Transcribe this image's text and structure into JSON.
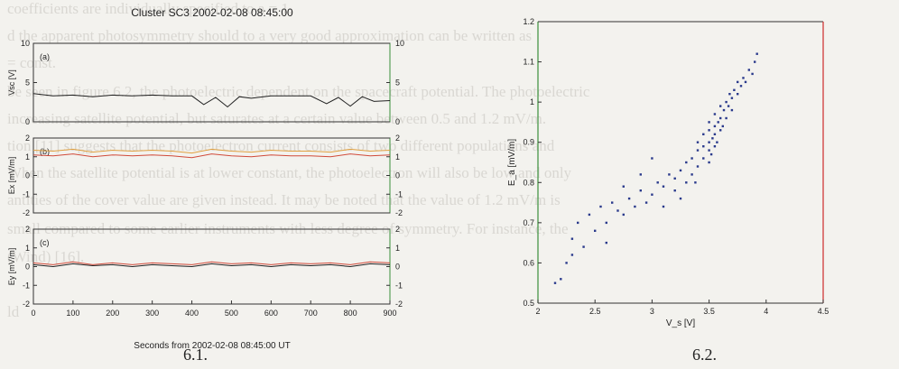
{
  "background_text": [
    "coefficients are individually specified to a = 1.",
    "d the apparent photosymmetry should to a very good approximation can be written as",
    "= const.",
    "be seen in figure 6.2, the photoelectric dependent on the spacecraft potential. The photoelectric",
    "increasing satellite potential, but saturates at a certain value between 0.5 and 1.2 mV/m.",
    "tion [11] suggests that the photoelectron current consists of two different populations and",
    "When the satellite potential is at lower constant, the photoelectron will also be low and only",
    "antities of the cover value are given instead. It may be noted that the value of 1.2 mV/m is",
    "small compared to some earlier instruments with less degree of symmetry. For instance, the",
    "(Wind) [16].",
    "ld"
  ],
  "figure_left": {
    "title": "Cluster SC3 2002-02-08 08:45:00",
    "xlabel": "Seconds from 2002-02-08 08:45:00 UT",
    "caption": "6.1.",
    "panels": [
      {
        "tag": "(a)",
        "ylabel": "Vsc [V]",
        "ylim": [
          0,
          10
        ],
        "yticks": [
          "10",
          "5",
          "0"
        ]
      },
      {
        "tag": "(b)",
        "ylabel": "Ex [mV/m]",
        "ylim": [
          -2,
          2
        ],
        "yticks": [
          "2",
          "1",
          "0",
          "-1",
          "-2"
        ]
      },
      {
        "tag": "(c)",
        "ylabel": "Ey [mV/m]",
        "ylim": [
          -2,
          2
        ],
        "yticks": [
          "2",
          "1",
          "0",
          "-1",
          "-2"
        ]
      }
    ],
    "xticks": [
      "0",
      "100",
      "200",
      "300",
      "400",
      "500",
      "600",
      "700",
      "800",
      "900"
    ],
    "colors": {
      "black_trace": "#222222",
      "red_trace": "#d04a3a",
      "orange_trace": "#e0a040",
      "axes": "#333333",
      "tick_marker": "#3a8f3a"
    }
  },
  "figure_right": {
    "caption": "6.2.",
    "xlabel": "V_s [V]",
    "ylabel": "E_a [mV/m]",
    "xticks": [
      "2",
      "2.5",
      "3",
      "3.5",
      "4",
      "4.5"
    ],
    "yticks": [
      "1.2",
      "1.1",
      "1",
      "0.9",
      "0.8",
      "0.7",
      "0.6",
      "0.5"
    ],
    "colors": {
      "points": "#2a3a8c",
      "axes": "#333333",
      "left_spine": "#3a8f3a",
      "right_spine": "#cc2a2a"
    }
  },
  "chart_data": [
    {
      "type": "line",
      "title": "Cluster SC3 2002-02-08 08:45:00",
      "xlabel": "Seconds from 2002-02-08 08:45:00 UT",
      "xlim": [
        0,
        900
      ],
      "panels": [
        {
          "ylabel": "Vsc [V]",
          "ylim": [
            0,
            10
          ],
          "series": [
            {
              "color": "#222222",
              "x": [
                0,
                50,
                100,
                150,
                200,
                250,
                300,
                350,
                400,
                430,
                460,
                490,
                520,
                550,
                600,
                650,
                700,
                740,
                770,
                800,
                830,
                860,
                900
              ],
              "y": [
                3.6,
                3.3,
                3.4,
                3.2,
                3.4,
                3.3,
                3.4,
                3.3,
                3.3,
                2.2,
                3.1,
                1.9,
                3.2,
                3.0,
                3.3,
                3.3,
                3.3,
                2.3,
                3.1,
                2.0,
                3.2,
                2.6,
                2.7
              ]
            }
          ]
        },
        {
          "ylabel": "Ex [mV/m]",
          "ylim": [
            -2,
            2
          ],
          "series": [
            {
              "color": "#e0a040",
              "x": [
                0,
                50,
                100,
                150,
                200,
                250,
                300,
                350,
                400,
                450,
                500,
                550,
                600,
                650,
                700,
                750,
                800,
                850,
                900
              ],
              "y": [
                1.35,
                1.3,
                1.4,
                1.25,
                1.35,
                1.3,
                1.35,
                1.3,
                1.2,
                1.4,
                1.3,
                1.25,
                1.35,
                1.3,
                1.3,
                1.25,
                1.4,
                1.3,
                1.35
              ]
            },
            {
              "color": "#d04a3a",
              "x": [
                0,
                50,
                100,
                150,
                200,
                250,
                300,
                350,
                400,
                450,
                500,
                550,
                600,
                650,
                700,
                750,
                800,
                850,
                900
              ],
              "y": [
                1.1,
                1.05,
                1.15,
                1.0,
                1.1,
                1.05,
                1.1,
                1.05,
                0.95,
                1.15,
                1.05,
                1.0,
                1.1,
                1.05,
                1.05,
                1.0,
                1.15,
                1.05,
                1.1
              ]
            }
          ]
        },
        {
          "ylabel": "Ey [mV/m]",
          "ylim": [
            -2,
            2
          ],
          "series": [
            {
              "color": "#222222",
              "x": [
                0,
                50,
                100,
                150,
                200,
                250,
                300,
                350,
                400,
                450,
                500,
                550,
                600,
                650,
                700,
                750,
                800,
                850,
                900
              ],
              "y": [
                0.1,
                0.0,
                0.15,
                0.05,
                0.1,
                0.0,
                0.1,
                0.05,
                0.0,
                0.15,
                0.05,
                0.1,
                0.0,
                0.1,
                0.05,
                0.1,
                0.0,
                0.15,
                0.1
              ]
            },
            {
              "color": "#d04a3a",
              "x": [
                0,
                50,
                100,
                150,
                200,
                250,
                300,
                350,
                400,
                450,
                500,
                550,
                600,
                650,
                700,
                750,
                800,
                850,
                900
              ],
              "y": [
                0.2,
                0.1,
                0.25,
                0.1,
                0.2,
                0.1,
                0.2,
                0.15,
                0.1,
                0.25,
                0.15,
                0.2,
                0.1,
                0.2,
                0.15,
                0.2,
                0.1,
                0.25,
                0.2
              ]
            }
          ]
        }
      ]
    },
    {
      "type": "scatter",
      "xlabel": "V_s [V]",
      "ylabel": "E_a [mV/m]",
      "xlim": [
        2,
        4.5
      ],
      "ylim": [
        0.5,
        1.2
      ],
      "points": [
        [
          2.15,
          0.55
        ],
        [
          2.2,
          0.56
        ],
        [
          2.25,
          0.6
        ],
        [
          2.3,
          0.62
        ],
        [
          2.3,
          0.66
        ],
        [
          2.35,
          0.7
        ],
        [
          2.4,
          0.64
        ],
        [
          2.45,
          0.72
        ],
        [
          2.5,
          0.68
        ],
        [
          2.55,
          0.74
        ],
        [
          2.6,
          0.7
        ],
        [
          2.65,
          0.75
        ],
        [
          2.7,
          0.73
        ],
        [
          2.75,
          0.72
        ],
        [
          2.8,
          0.76
        ],
        [
          2.85,
          0.74
        ],
        [
          2.9,
          0.78
        ],
        [
          2.95,
          0.75
        ],
        [
          3.0,
          0.77
        ],
        [
          3.05,
          0.8
        ],
        [
          3.1,
          0.79
        ],
        [
          3.15,
          0.82
        ],
        [
          3.2,
          0.78
        ],
        [
          3.2,
          0.81
        ],
        [
          3.25,
          0.83
        ],
        [
          3.3,
          0.8
        ],
        [
          3.3,
          0.85
        ],
        [
          3.35,
          0.82
        ],
        [
          3.35,
          0.86
        ],
        [
          3.4,
          0.84
        ],
        [
          3.4,
          0.88
        ],
        [
          3.4,
          0.9
        ],
        [
          3.45,
          0.86
        ],
        [
          3.45,
          0.89
        ],
        [
          3.45,
          0.92
        ],
        [
          3.5,
          0.85
        ],
        [
          3.5,
          0.88
        ],
        [
          3.5,
          0.9
        ],
        [
          3.5,
          0.93
        ],
        [
          3.5,
          0.95
        ],
        [
          3.52,
          0.87
        ],
        [
          3.53,
          0.91
        ],
        [
          3.55,
          0.89
        ],
        [
          3.55,
          0.92
        ],
        [
          3.55,
          0.94
        ],
        [
          3.55,
          0.97
        ],
        [
          3.57,
          0.9
        ],
        [
          3.58,
          0.95
        ],
        [
          3.6,
          0.93
        ],
        [
          3.6,
          0.96
        ],
        [
          3.6,
          0.99
        ],
        [
          3.62,
          0.94
        ],
        [
          3.63,
          0.98
        ],
        [
          3.65,
          0.96
        ],
        [
          3.65,
          1.0
        ],
        [
          3.67,
          0.99
        ],
        [
          3.68,
          1.02
        ],
        [
          3.7,
          0.98
        ],
        [
          3.7,
          1.01
        ],
        [
          3.72,
          1.03
        ],
        [
          3.75,
          1.02
        ],
        [
          3.75,
          1.05
        ],
        [
          3.78,
          1.04
        ],
        [
          3.8,
          1.06
        ],
        [
          3.82,
          1.05
        ],
        [
          3.85,
          1.08
        ],
        [
          3.88,
          1.07
        ],
        [
          3.9,
          1.1
        ],
        [
          3.92,
          1.12
        ],
        [
          2.9,
          0.82
        ],
        [
          3.0,
          0.86
        ],
        [
          2.6,
          0.65
        ],
        [
          3.1,
          0.74
        ],
        [
          3.25,
          0.76
        ],
        [
          3.38,
          0.8
        ],
        [
          2.75,
          0.79
        ]
      ]
    }
  ]
}
